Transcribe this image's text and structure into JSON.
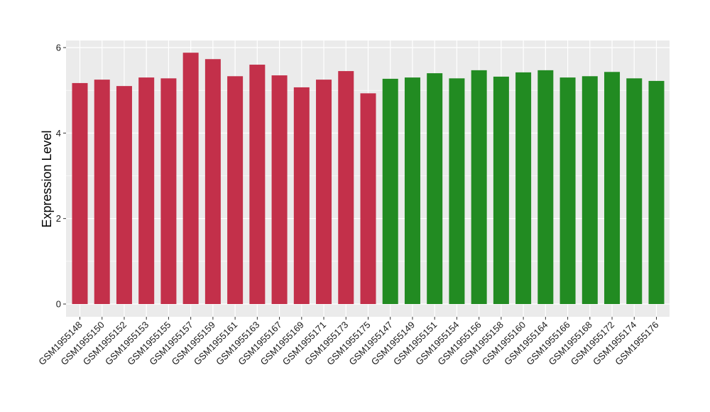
{
  "chart_data": {
    "type": "bar",
    "title": "",
    "xlabel": "",
    "ylabel": "Expression Level",
    "ylim": [
      0,
      6.2
    ],
    "yticks": [
      "0",
      "2",
      "4",
      "6"
    ],
    "grid": true,
    "categories": [
      "GSM1955148",
      "GSM1955150",
      "GSM1955152",
      "GSM1955153",
      "GSM1955155",
      "GSM1955157",
      "GSM1955159",
      "GSM1955161",
      "GSM1955163",
      "GSM1955167",
      "GSM1955169",
      "GSM1955171",
      "GSM1955173",
      "GSM1955175",
      "GSM1955147",
      "GSM1955149",
      "GSM1955151",
      "GSM1955154",
      "GSM1955156",
      "GSM1955158",
      "GSM1955160",
      "GSM1955164",
      "GSM1955166",
      "GSM1955168",
      "GSM1955172",
      "GSM1955174",
      "GSM1955176"
    ],
    "values": [
      5.17,
      5.25,
      5.1,
      5.3,
      5.28,
      5.88,
      5.73,
      5.33,
      5.6,
      5.35,
      5.07,
      5.25,
      5.45,
      4.93,
      5.27,
      5.3,
      5.4,
      5.28,
      5.47,
      5.32,
      5.42,
      5.47,
      5.3,
      5.33,
      5.43,
      5.28,
      5.22
    ],
    "bar_colors": [
      "#c3304a",
      "#c3304a",
      "#c3304a",
      "#c3304a",
      "#c3304a",
      "#c3304a",
      "#c3304a",
      "#c3304a",
      "#c3304a",
      "#c3304a",
      "#c3304a",
      "#c3304a",
      "#c3304a",
      "#c3304a",
      "#228b22",
      "#228b22",
      "#228b22",
      "#228b22",
      "#228b22",
      "#228b22",
      "#228b22",
      "#228b22",
      "#228b22",
      "#228b22",
      "#228b22",
      "#228b22",
      "#228b22"
    ],
    "panel_background": "#ebebeb",
    "grid_color": "#ffffff"
  }
}
